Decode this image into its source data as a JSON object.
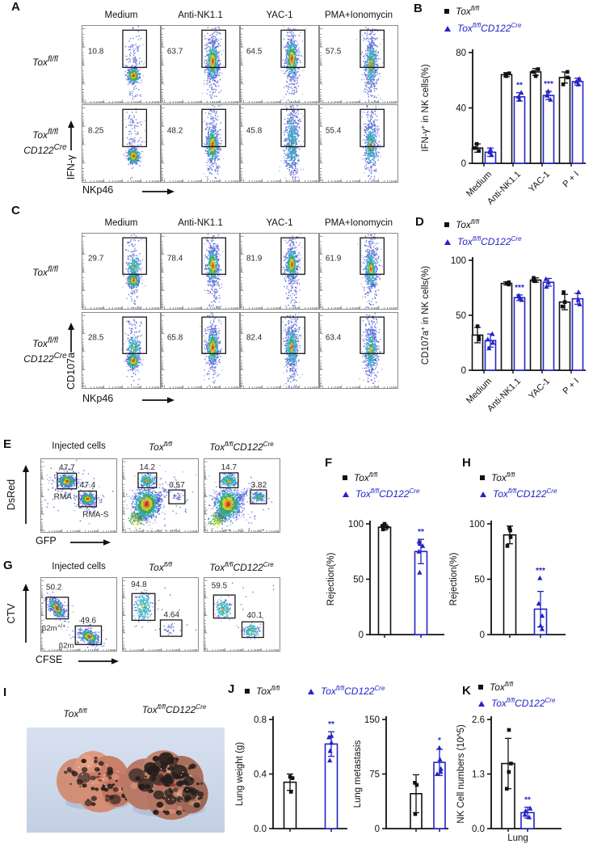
{
  "colors": {
    "accent_blue": "#2323c8",
    "ink": "#111111",
    "photo_bg": "#ccd7e8"
  },
  "panel_labels": {
    "A": "A",
    "B": "B",
    "C": "C",
    "D": "D",
    "E": "E",
    "F": "F",
    "G": "G",
    "H": "H",
    "I": "I",
    "J": "J",
    "K": "K"
  },
  "genotypes": {
    "wt": [
      [
        "i",
        "Tox"
      ],
      [
        "sup",
        "fl/fl"
      ]
    ],
    "ko": [
      [
        "i",
        "Tox"
      ],
      [
        "sup",
        "fl/fl"
      ],
      [
        "i",
        "CD122"
      ],
      [
        "sup",
        "Cre"
      ]
    ],
    "ko2": [
      [
        "i",
        "Tox"
      ],
      [
        "sup",
        "fl/fl"
      ],
      [
        "br",
        ""
      ],
      [
        "i",
        "CD122"
      ],
      [
        "sup",
        "Cre"
      ]
    ]
  },
  "series_names": {
    "black": "Tox fl/fl",
    "blue": "Tox fl/fl CD122Cre"
  },
  "flow": {
    "A": {
      "cols": [
        "Medium",
        "Anti-NK1.1",
        "YAC-1",
        "PMA+Ionomycin"
      ],
      "xaxis": "NKp46",
      "yaxis": "IFN-γ",
      "values": [
        [
          "10.8",
          "63.7",
          "64.5",
          "57.5"
        ],
        [
          "8.25",
          "48.2",
          "45.8",
          "55.4"
        ]
      ]
    },
    "C": {
      "cols": [
        "Medium",
        "Anti-NK1.1",
        "YAC-1",
        "PMA+Ionomycin"
      ],
      "xaxis": "NKp46",
      "yaxis": "CD107a",
      "values": [
        [
          "29.7",
          "78.4",
          "81.9",
          "61.9"
        ],
        [
          "28.5",
          "65.8",
          "82.4",
          "63.4"
        ]
      ]
    },
    "E": {
      "titles": [
        "Injected cells"
      ],
      "xaxis": "GFP",
      "yaxis": "DsRed",
      "plots": [
        {
          "pcts": [
            "47.7",
            "47.4"
          ],
          "labels": [
            "RMA",
            "RMA-S"
          ]
        },
        {
          "pcts": [
            "14.2",
            "0.57"
          ],
          "labels": []
        },
        {
          "pcts": [
            "14.7",
            "3.82"
          ],
          "labels": []
        }
      ]
    },
    "G": {
      "titles": [
        "Injected cells"
      ],
      "xaxis": "CFSE",
      "yaxis": "CTV",
      "plots": [
        {
          "pcts": [
            "50.2",
            "49.6"
          ],
          "labels": [
            "β2m+/+",
            "β2m-/-"
          ]
        },
        {
          "pcts": [
            "94.8",
            "4.64"
          ],
          "labels": []
        },
        {
          "pcts": [
            "59.5",
            "40.1"
          ],
          "labels": []
        }
      ]
    }
  },
  "chart_data": [
    {
      "id": "B",
      "type": "bar",
      "ylabel": "IFN-γ⁺ in NK cells(%)",
      "categories": [
        "Medium",
        "Anti-NK1.1",
        "YAC-1",
        "P + I"
      ],
      "ylim": [
        0,
        80
      ],
      "yticks": [
        "0",
        "40",
        "80"
      ],
      "legend_position": "top",
      "series": [
        {
          "name": "Tox fl/fl",
          "color": "black",
          "values": [
            11,
            64,
            66,
            62
          ],
          "err": [
            3,
            1.5,
            2.5,
            4
          ],
          "points": [
            [
              9,
              11,
              14
            ],
            [
              63,
              64,
              65
            ],
            [
              63,
              66,
              68
            ],
            [
              57,
              62,
              66
            ]
          ]
        },
        {
          "name": "Tox fl/fl CD122Cre",
          "color": "blue",
          "values": [
            8,
            48,
            49,
            59
          ],
          "err": [
            3,
            3,
            3,
            2.5
          ],
          "points": [
            [
              6,
              8,
              10
            ],
            [
              46,
              48,
              51
            ],
            [
              46,
              49,
              52
            ],
            [
              57,
              59,
              61
            ]
          ]
        }
      ],
      "sig": [
        "",
        "**",
        "***",
        ""
      ]
    },
    {
      "id": "D",
      "type": "bar",
      "ylabel": "CD107a⁺ in NK cells(%)",
      "categories": [
        "Medium",
        "Anti-NK1.1",
        "YAC-1",
        "P + I"
      ],
      "ylim": [
        0,
        100
      ],
      "yticks": [
        "0",
        "50",
        "100"
      ],
      "legend_position": "top",
      "series": [
        {
          "name": "Tox fl/fl",
          "color": "black",
          "values": [
            32,
            79,
            82,
            62
          ],
          "err": [
            7,
            1.5,
            2,
            7
          ],
          "points": [
            [
              28,
              30,
              40
            ],
            [
              78,
              79,
              80
            ],
            [
              81,
              82,
              84
            ],
            [
              58,
              62,
              71
            ]
          ]
        },
        {
          "name": "Tox fl/fl CD122Cre",
          "color": "blue",
          "values": [
            27,
            66,
            80,
            65
          ],
          "err": [
            6,
            2.5,
            3.5,
            5
          ],
          "points": [
            [
              20,
              25,
              28,
              33
            ],
            [
              64,
              66,
              68
            ],
            [
              76,
              80,
              83
            ],
            [
              60,
              64,
              71
            ]
          ]
        }
      ],
      "sig": [
        "",
        "***",
        "",
        ""
      ]
    },
    {
      "id": "F",
      "type": "bar",
      "ylabel": "Rejection(%)",
      "categories": [
        ""
      ],
      "ylim": [
        0,
        100
      ],
      "yticks": [
        "0",
        "50",
        "100"
      ],
      "legend_position": "top",
      "series": [
        {
          "name": "Tox fl/fl",
          "color": "black",
          "values": [
            97
          ],
          "err": [
            2.5
          ],
          "points": [
            [
              95,
              97,
              98,
              100
            ]
          ]
        },
        {
          "name": "Tox fl/fl CD122Cre",
          "color": "blue",
          "values": [
            75
          ],
          "err": [
            11
          ],
          "points": [
            [
              56,
              75,
              80,
              82,
              84
            ]
          ]
        }
      ],
      "sig": [
        "**"
      ]
    },
    {
      "id": "H",
      "type": "bar",
      "ylabel": "Rejection(%)",
      "categories": [
        ""
      ],
      "ylim": [
        0,
        100
      ],
      "yticks": [
        "0",
        "50",
        "100"
      ],
      "legend_position": "top",
      "series": [
        {
          "name": "Tox fl/fl",
          "color": "black",
          "values": [
            90
          ],
          "err": [
            8
          ],
          "points": [
            [
              80,
              88,
              94,
              96
            ]
          ]
        },
        {
          "name": "Tox fl/fl CD122Cre",
          "color": "blue",
          "values": [
            23
          ],
          "err": [
            16
          ],
          "points": [
            [
              5,
              8,
              17,
              28,
              51
            ]
          ]
        }
      ],
      "sig": [
        "***"
      ]
    },
    {
      "id": "J1",
      "type": "bar",
      "ylabel": "Lung weight (g)",
      "categories": [
        ""
      ],
      "ylim": [
        0,
        0.8
      ],
      "yticks": [
        "0.0",
        "0.4",
        "0.8"
      ],
      "legend_position": "top",
      "series": [
        {
          "name": "Tox fl/fl",
          "color": "black",
          "values": [
            0.34
          ],
          "err": [
            0.06
          ],
          "points": [
            [
              0.27,
              0.37,
              0.38
            ]
          ]
        },
        {
          "name": "Tox fl/fl CD122Cre",
          "color": "blue",
          "values": [
            0.62
          ],
          "err": [
            0.09
          ],
          "points": [
            [
              0.5,
              0.57,
              0.63,
              0.67,
              0.68
            ]
          ]
        }
      ],
      "sig": [
        "**"
      ]
    },
    {
      "id": "J2",
      "type": "bar",
      "ylabel": "Lung metastasis",
      "categories": [
        ""
      ],
      "ylim": [
        0,
        150
      ],
      "yticks": [
        "0",
        "75",
        "150"
      ],
      "legend_position": "top",
      "series": [
        {
          "name": "Tox fl/fl",
          "color": "black",
          "values": [
            48
          ],
          "err": [
            26
          ],
          "points": [
            [
              20,
              60,
              63
            ]
          ]
        },
        {
          "name": "Tox fl/fl CD122Cre",
          "color": "blue",
          "values": [
            91
          ],
          "err": [
            18
          ],
          "points": [
            [
              75,
              78,
              82,
              95,
              111
            ]
          ]
        }
      ],
      "sig": [
        "*"
      ]
    },
    {
      "id": "K",
      "type": "bar",
      "ylabel": "NK Cell numbers (10^5)",
      "categories": [
        ""
      ],
      "xlabel": "Lung",
      "ylim": [
        0,
        2.6
      ],
      "yticks": [
        "0.0",
        "1.3",
        "2.6"
      ],
      "legend_position": "top",
      "series": [
        {
          "name": "Tox fl/fl",
          "color": "black",
          "values": [
            1.55
          ],
          "err": [
            0.6
          ],
          "points": [
            [
              0.95,
              1.35,
              1.55,
              2.35
            ]
          ]
        },
        {
          "name": "Tox fl/fl CD122Cre",
          "color": "blue",
          "values": [
            0.38
          ],
          "err": [
            0.13
          ],
          "points": [
            [
              0.27,
              0.33,
              0.42,
              0.48
            ]
          ]
        }
      ],
      "sig": [
        "**"
      ]
    }
  ]
}
